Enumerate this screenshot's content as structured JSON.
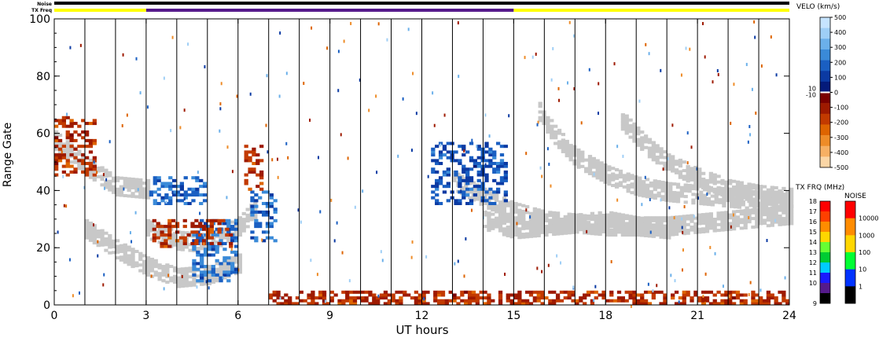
{
  "chart_data": {
    "type": "heatmap",
    "title": "",
    "xlabel": "UT hours",
    "ylabel": "Range Gate",
    "xlim": [
      0,
      24
    ],
    "ylim": [
      0,
      100
    ],
    "x_ticks": [
      "0",
      "3",
      "6",
      "9",
      "12",
      "15",
      "18",
      "21",
      "24"
    ],
    "y_ticks": [
      "0",
      "20",
      "40",
      "60",
      "80",
      "100"
    ],
    "grid": "vertical lines every 1 hour",
    "top_bars": {
      "noise_label": "Noise",
      "txfreq_label": "TX Freq",
      "noise_color": "#000000",
      "txfreq_segments": [
        {
          "start": 0,
          "end": 3,
          "color": "#ffff00"
        },
        {
          "start": 3,
          "end": 15,
          "color": "#551a8b"
        },
        {
          "start": 15,
          "end": 24,
          "color": "#ffff00"
        }
      ]
    },
    "velocity_scale": {
      "title": "VELO (km/s)",
      "ticks": [
        "500",
        "400",
        "300",
        "200",
        "100",
        "0",
        "-100",
        "-200",
        "-300",
        "-400",
        "-500"
      ],
      "near_zero_labels": [
        "10",
        "-10"
      ],
      "colors_top_to_bottom": [
        "#c6e4ff",
        "#9fcff6",
        "#6bb0ea",
        "#3a8ad8",
        "#1a5fc2",
        "#0b3aa3",
        "#041a7a",
        "#7a0000",
        "#9e1a00",
        "#c23a00",
        "#de6400",
        "#ee8c28",
        "#f6b064",
        "#fbd6a6"
      ]
    },
    "txfreq_scale": {
      "title": "TX FRQ (MHz)",
      "ticks": [
        "18",
        "17",
        "16",
        "15",
        "14",
        "13",
        "12",
        "11",
        "10",
        "9"
      ],
      "colors_top_to_bottom": [
        "#ff0000",
        "#ff4000",
        "#ff8c00",
        "#ffd700",
        "#66ff33",
        "#00cc33",
        "#00ccff",
        "#1a1aff",
        "#551a8b",
        "#000000"
      ]
    },
    "noise_scale": {
      "title": "NOISE",
      "ticks": [
        "10000",
        "1000",
        "100",
        "10",
        "1"
      ],
      "colors_top_to_bottom": [
        "#ff0000",
        "#ff8c00",
        "#ffd700",
        "#00ff33",
        "#0033ff",
        "#000000"
      ]
    },
    "ground_scatter_color": "#c8c8c8",
    "series": [
      {
        "type": "ground-scatter",
        "x": [
          0,
          1,
          2,
          3
        ],
        "y": [
          58,
          49,
          42,
          41
        ]
      },
      {
        "type": "ground-scatter",
        "x": [
          1,
          2,
          3,
          4,
          5,
          6
        ],
        "y": [
          27,
          20,
          14,
          10,
          11,
          15
        ]
      },
      {
        "type": "ground-scatter",
        "x": [
          3,
          4,
          5,
          6,
          6.6
        ],
        "y": [
          27,
          23,
          22,
          28,
          35
        ]
      },
      {
        "type": "ground-scatter",
        "x": [
          13,
          14,
          15,
          16,
          18,
          20,
          22,
          24
        ],
        "y": [
          44,
          38,
          33,
          30,
          28,
          28,
          30,
          32
        ]
      },
      {
        "type": "ground-scatter",
        "x": [
          14,
          15,
          16,
          17,
          18,
          19,
          20
        ],
        "y": [
          30,
          27,
          28,
          29,
          30,
          28,
          27
        ]
      },
      {
        "type": "ground-scatter",
        "x": [
          15.8,
          16.3,
          17,
          18,
          19,
          20,
          21,
          22,
          23,
          24
        ],
        "y": [
          68,
          60,
          52,
          46,
          42,
          40,
          39,
          38,
          37,
          37
        ]
      },
      {
        "type": "ground-scatter",
        "x": [
          18.5,
          19.3,
          20,
          21,
          22,
          23,
          24
        ],
        "y": [
          65,
          56,
          50,
          45,
          41,
          39,
          38
        ]
      },
      {
        "type": "velocity-cluster",
        "x": [
          3.1,
          4.9
        ],
        "y": [
          35,
          45
        ],
        "value": 200
      },
      {
        "type": "velocity-cluster",
        "x": [
          4.5,
          6.0
        ],
        "y": [
          8,
          30
        ],
        "value": 200
      },
      {
        "type": "velocity-cluster",
        "x": [
          6.4,
          7.2
        ],
        "y": [
          22,
          40
        ],
        "value": 200
      },
      {
        "type": "velocity-cluster",
        "x": [
          0,
          1.3
        ],
        "y": [
          45,
          66
        ],
        "value": -150
      },
      {
        "type": "velocity-cluster",
        "x": [
          3.2,
          5.8
        ],
        "y": [
          20,
          30
        ],
        "value": -150
      },
      {
        "type": "velocity-cluster",
        "x": [
          6.2,
          6.8
        ],
        "y": [
          40,
          56
        ],
        "value": -150
      },
      {
        "type": "velocity-cluster",
        "x": [
          12.3,
          14.8
        ],
        "y": [
          35,
          57
        ],
        "value": 150
      },
      {
        "type": "velocity-cluster",
        "x": [
          7.0,
          24.0
        ],
        "y": [
          0,
          5
        ],
        "value": -150
      }
    ]
  }
}
